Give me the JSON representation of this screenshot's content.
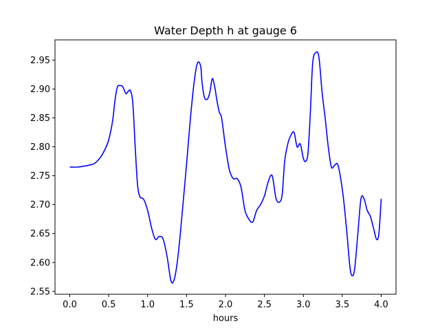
{
  "chart_data": {
    "type": "line",
    "title": "Water Depth h at gauge 6",
    "xlabel": "hours",
    "ylabel": "",
    "xlim": [
      -0.19,
      4.19
    ],
    "ylim": [
      2.545,
      2.985
    ],
    "x_ticks": [
      0.0,
      0.5,
      1.0,
      1.5,
      2.0,
      2.5,
      3.0,
      3.5,
      4.0
    ],
    "x_tick_labels": [
      "0.0",
      "0.5",
      "1.0",
      "1.5",
      "2.0",
      "2.5",
      "3.0",
      "3.5",
      "4.0"
    ],
    "y_ticks": [
      2.55,
      2.6,
      2.65,
      2.7,
      2.75,
      2.8,
      2.85,
      2.9,
      2.95
    ],
    "y_tick_labels": [
      "2.55",
      "2.60",
      "2.65",
      "2.70",
      "2.75",
      "2.80",
      "2.85",
      "2.90",
      "2.95"
    ],
    "grid": false,
    "legend": "none",
    "series": [
      {
        "color": "#0000ff",
        "x": [
          0.0,
          0.1,
          0.2,
          0.3,
          0.35,
          0.4,
          0.45,
          0.5,
          0.55,
          0.58,
          0.61,
          0.64,
          0.68,
          0.72,
          0.75,
          0.78,
          0.81,
          0.84,
          0.87,
          0.9,
          0.95,
          1.0,
          1.05,
          1.1,
          1.15,
          1.2,
          1.25,
          1.3,
          1.34,
          1.38,
          1.42,
          1.46,
          1.5,
          1.55,
          1.6,
          1.64,
          1.68,
          1.7,
          1.73,
          1.77,
          1.8,
          1.83,
          1.86,
          1.89,
          1.92,
          1.95,
          2.0,
          2.05,
          2.1,
          2.15,
          2.2,
          2.25,
          2.3,
          2.35,
          2.4,
          2.45,
          2.5,
          2.55,
          2.6,
          2.65,
          2.7,
          2.73,
          2.76,
          2.8,
          2.84,
          2.88,
          2.92,
          2.96,
          3.0,
          3.03,
          3.06,
          3.09,
          3.12,
          3.16,
          3.2,
          3.24,
          3.28,
          3.32,
          3.36,
          3.4,
          3.44,
          3.48,
          3.52,
          3.56,
          3.6,
          3.63,
          3.66,
          3.7,
          3.74,
          3.78,
          3.82,
          3.86,
          3.9,
          3.94,
          3.97,
          4.0
        ],
        "y": [
          2.765,
          2.765,
          2.767,
          2.77,
          2.775,
          2.783,
          2.795,
          2.812,
          2.845,
          2.88,
          2.903,
          2.906,
          2.904,
          2.892,
          2.896,
          2.897,
          2.875,
          2.8,
          2.735,
          2.714,
          2.709,
          2.69,
          2.66,
          2.64,
          2.645,
          2.64,
          2.61,
          2.568,
          2.57,
          2.6,
          2.65,
          2.71,
          2.77,
          2.85,
          2.915,
          2.945,
          2.94,
          2.91,
          2.885,
          2.883,
          2.895,
          2.918,
          2.905,
          2.88,
          2.86,
          2.85,
          2.8,
          2.76,
          2.745,
          2.745,
          2.73,
          2.69,
          2.675,
          2.67,
          2.69,
          2.7,
          2.715,
          2.74,
          2.75,
          2.71,
          2.705,
          2.72,
          2.775,
          2.805,
          2.82,
          2.825,
          2.8,
          2.805,
          2.78,
          2.775,
          2.79,
          2.86,
          2.945,
          2.963,
          2.955,
          2.895,
          2.85,
          2.8,
          2.765,
          2.768,
          2.77,
          2.745,
          2.705,
          2.65,
          2.59,
          2.577,
          2.59,
          2.65,
          2.71,
          2.71,
          2.69,
          2.68,
          2.66,
          2.64,
          2.65,
          2.71
        ]
      }
    ]
  }
}
